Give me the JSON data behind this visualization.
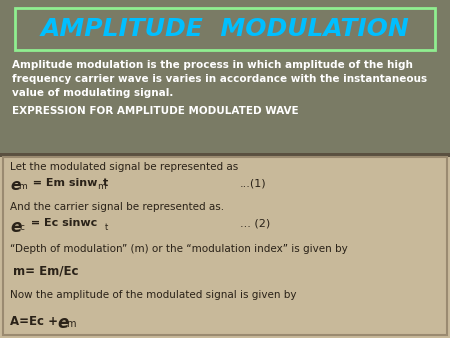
{
  "title": "AMPLITUDE  MODULATION",
  "title_color": "#00BFFF",
  "title_box_edge": "#90EE90",
  "bg_top_color": "#7A7B65",
  "bg_bottom_color": "#C8B99A",
  "border_color": "#8B7355",
  "intro_text_line1": "Amplitude modulation is the process in which amplitude of the high",
  "intro_text_line2": "frequency carrier wave is varies in accordance with the instantaneous",
  "intro_text_line3": "value of modulating signal.",
  "section_label": "EXPRESSION FOR AMPLITUDE MODULATED WAVE",
  "text_color_dark": "#2A2218",
  "text_color_white": "#FFFFFF"
}
